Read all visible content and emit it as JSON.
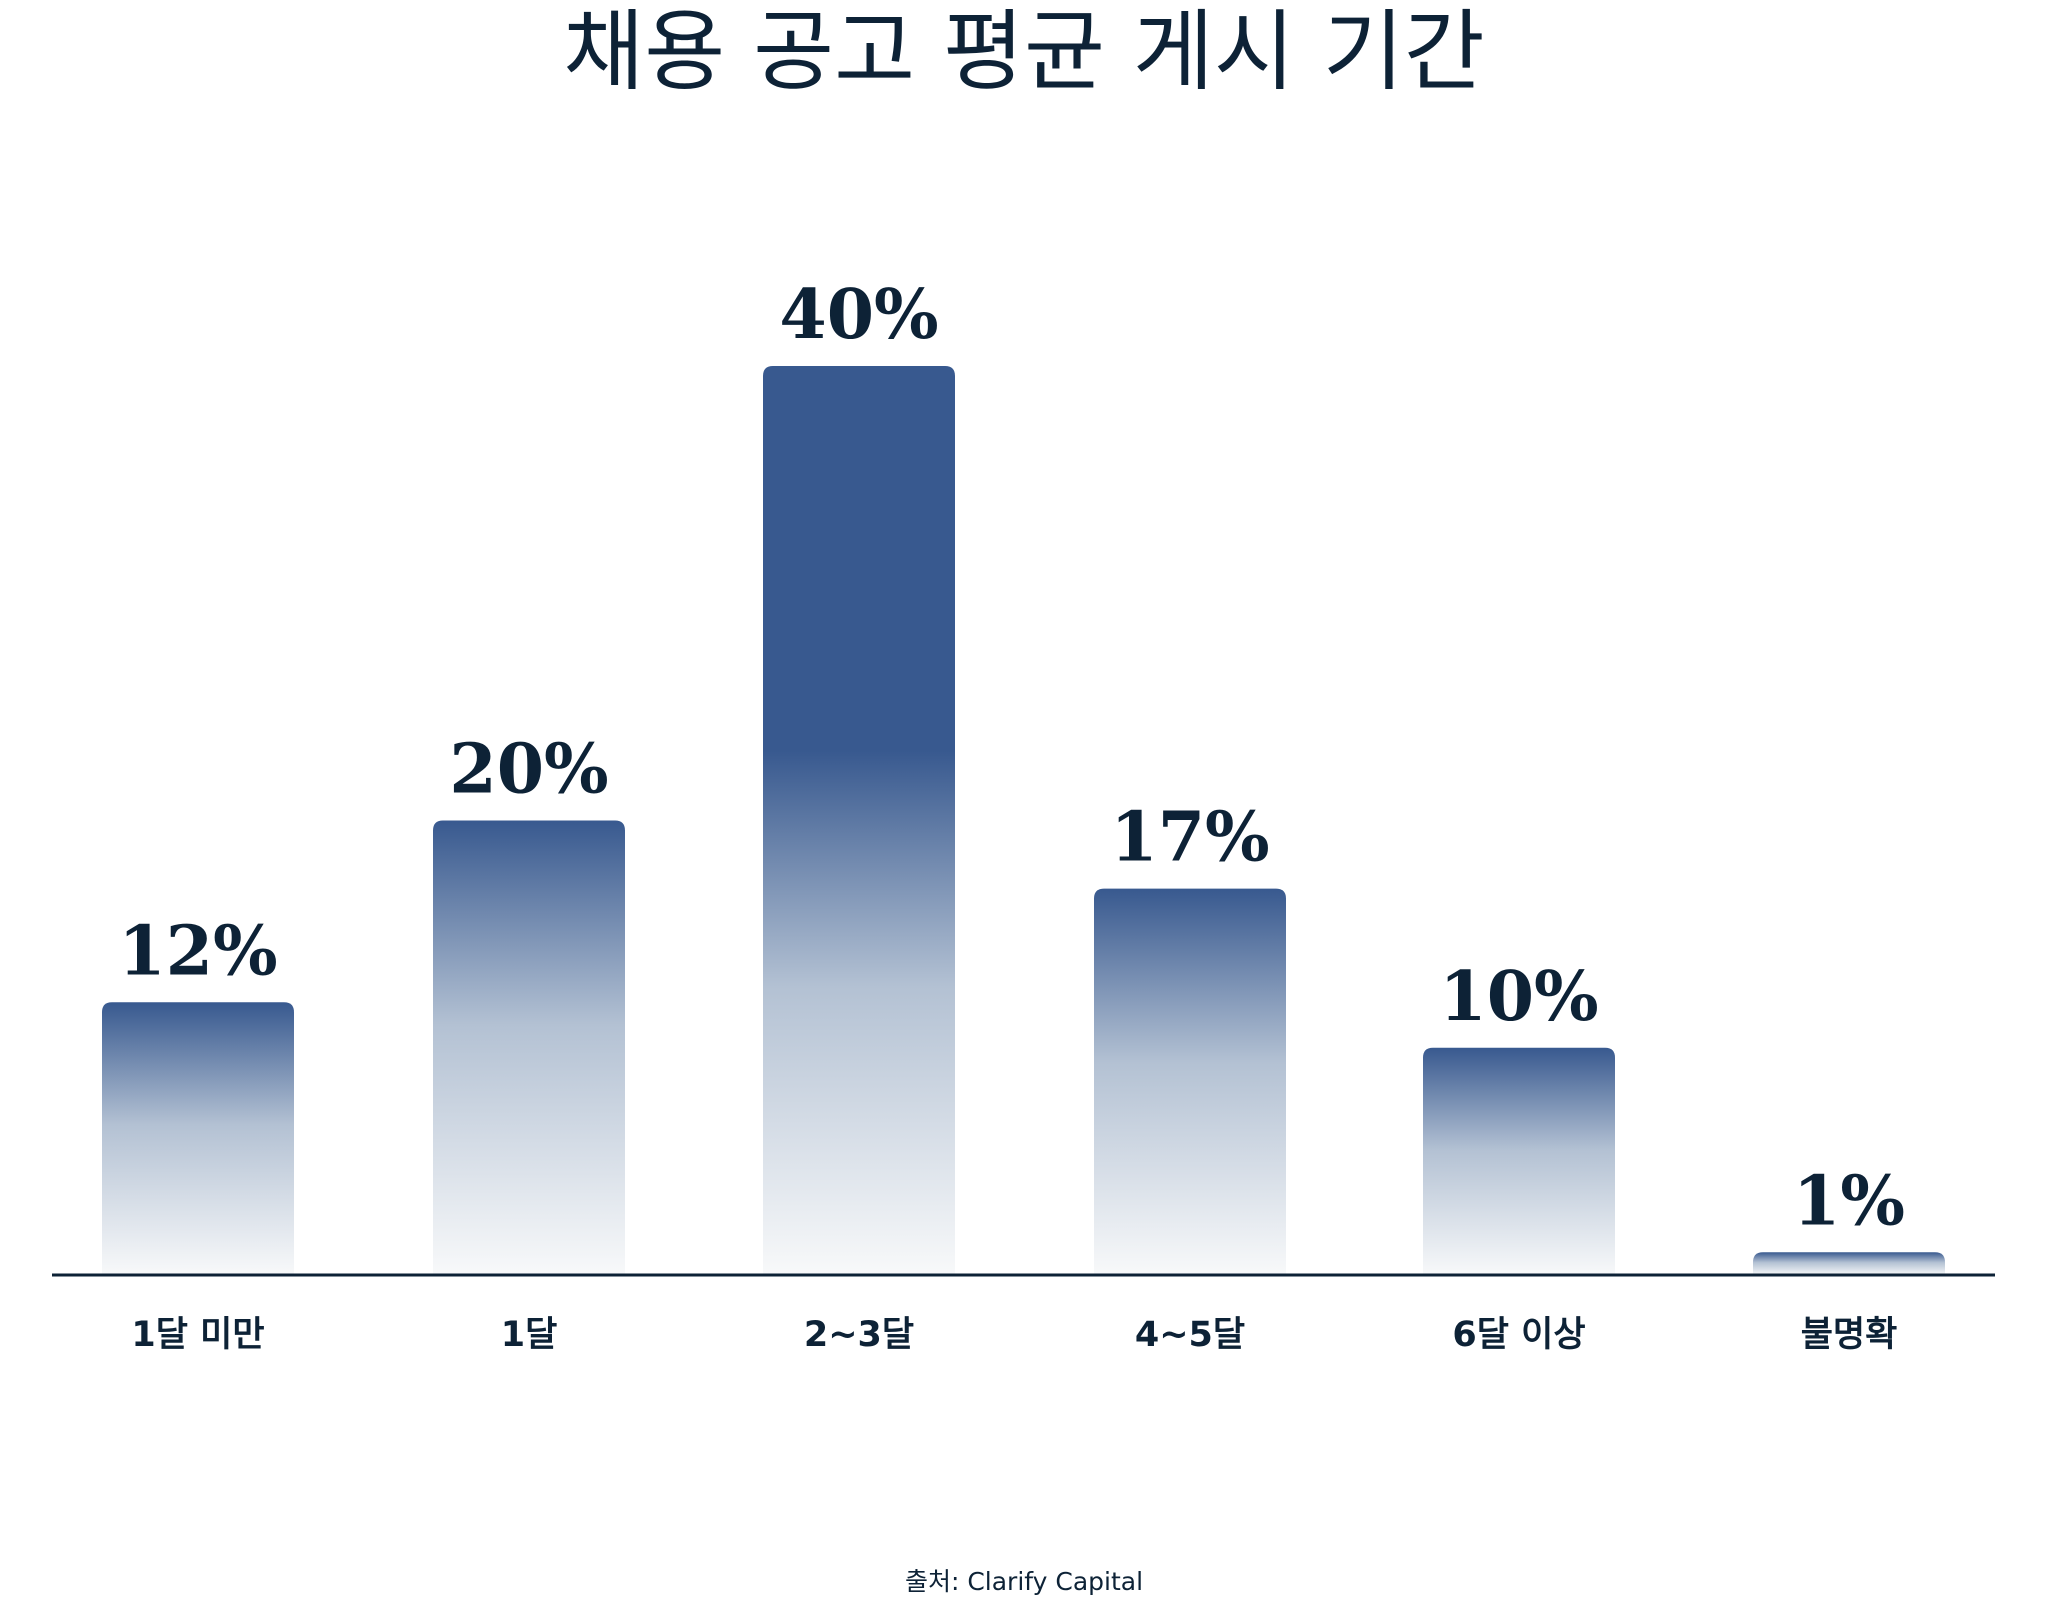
{
  "chart_data": {
    "type": "bar",
    "title": "채용 공고 평균 게시 기간",
    "categories": [
      "1달 미만",
      "1달",
      "2~3달",
      "4~5달",
      "6달 이상",
      "불명확"
    ],
    "values": [
      12,
      20,
      40,
      17,
      10,
      1
    ],
    "data_labels": [
      "12%",
      "20%",
      "40%",
      "17%",
      "10%",
      "1%"
    ],
    "xlabel": "",
    "ylabel": "",
    "ylim": [
      0,
      40
    ],
    "grid": false,
    "colors": {
      "bar_top": "#38598f",
      "bar_bottom": "#f8f9fa",
      "text": "#0d2236",
      "axis": "#0d2236"
    }
  },
  "source": "출처: Clarify Capital"
}
